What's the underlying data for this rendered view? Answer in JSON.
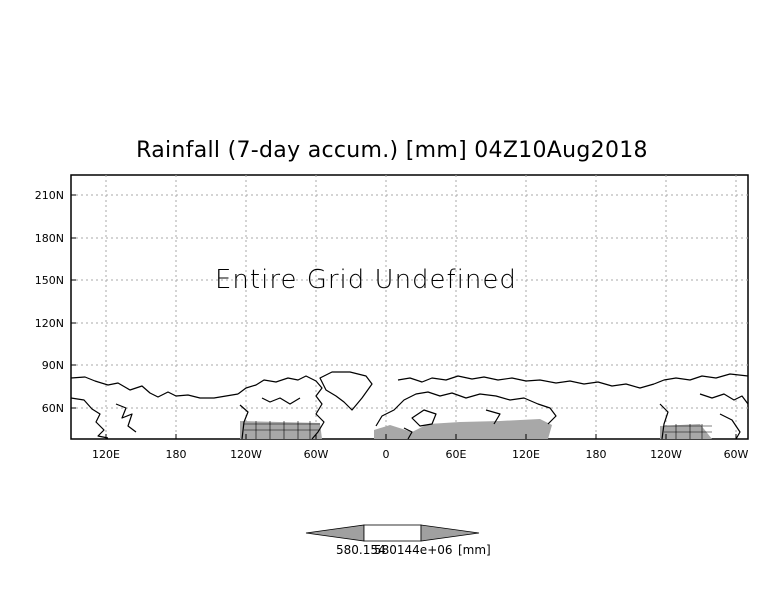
{
  "title": "Rainfall (7-day accum.) [mm] 04Z10Aug2018",
  "note": "Entire Grid Undefined",
  "y_ticks": [
    "210N",
    "180N",
    "150N",
    "120N",
    "90N",
    "60N"
  ],
  "x_ticks": [
    "120E",
    "180",
    "120W",
    "60W",
    "0",
    "60E",
    "120E",
    "180",
    "120W",
    "60W"
  ],
  "colorbar": {
    "value_label_1": "580.154",
    "value_label_2": "580144e+06",
    "unit": "[mm]",
    "fill_color": "#ffffff",
    "arrow_color": "#a0a0a0"
  },
  "colors": {
    "land_shade": "#a8a8a8",
    "grid": "#aaaaaa",
    "coast": "#000000"
  }
}
